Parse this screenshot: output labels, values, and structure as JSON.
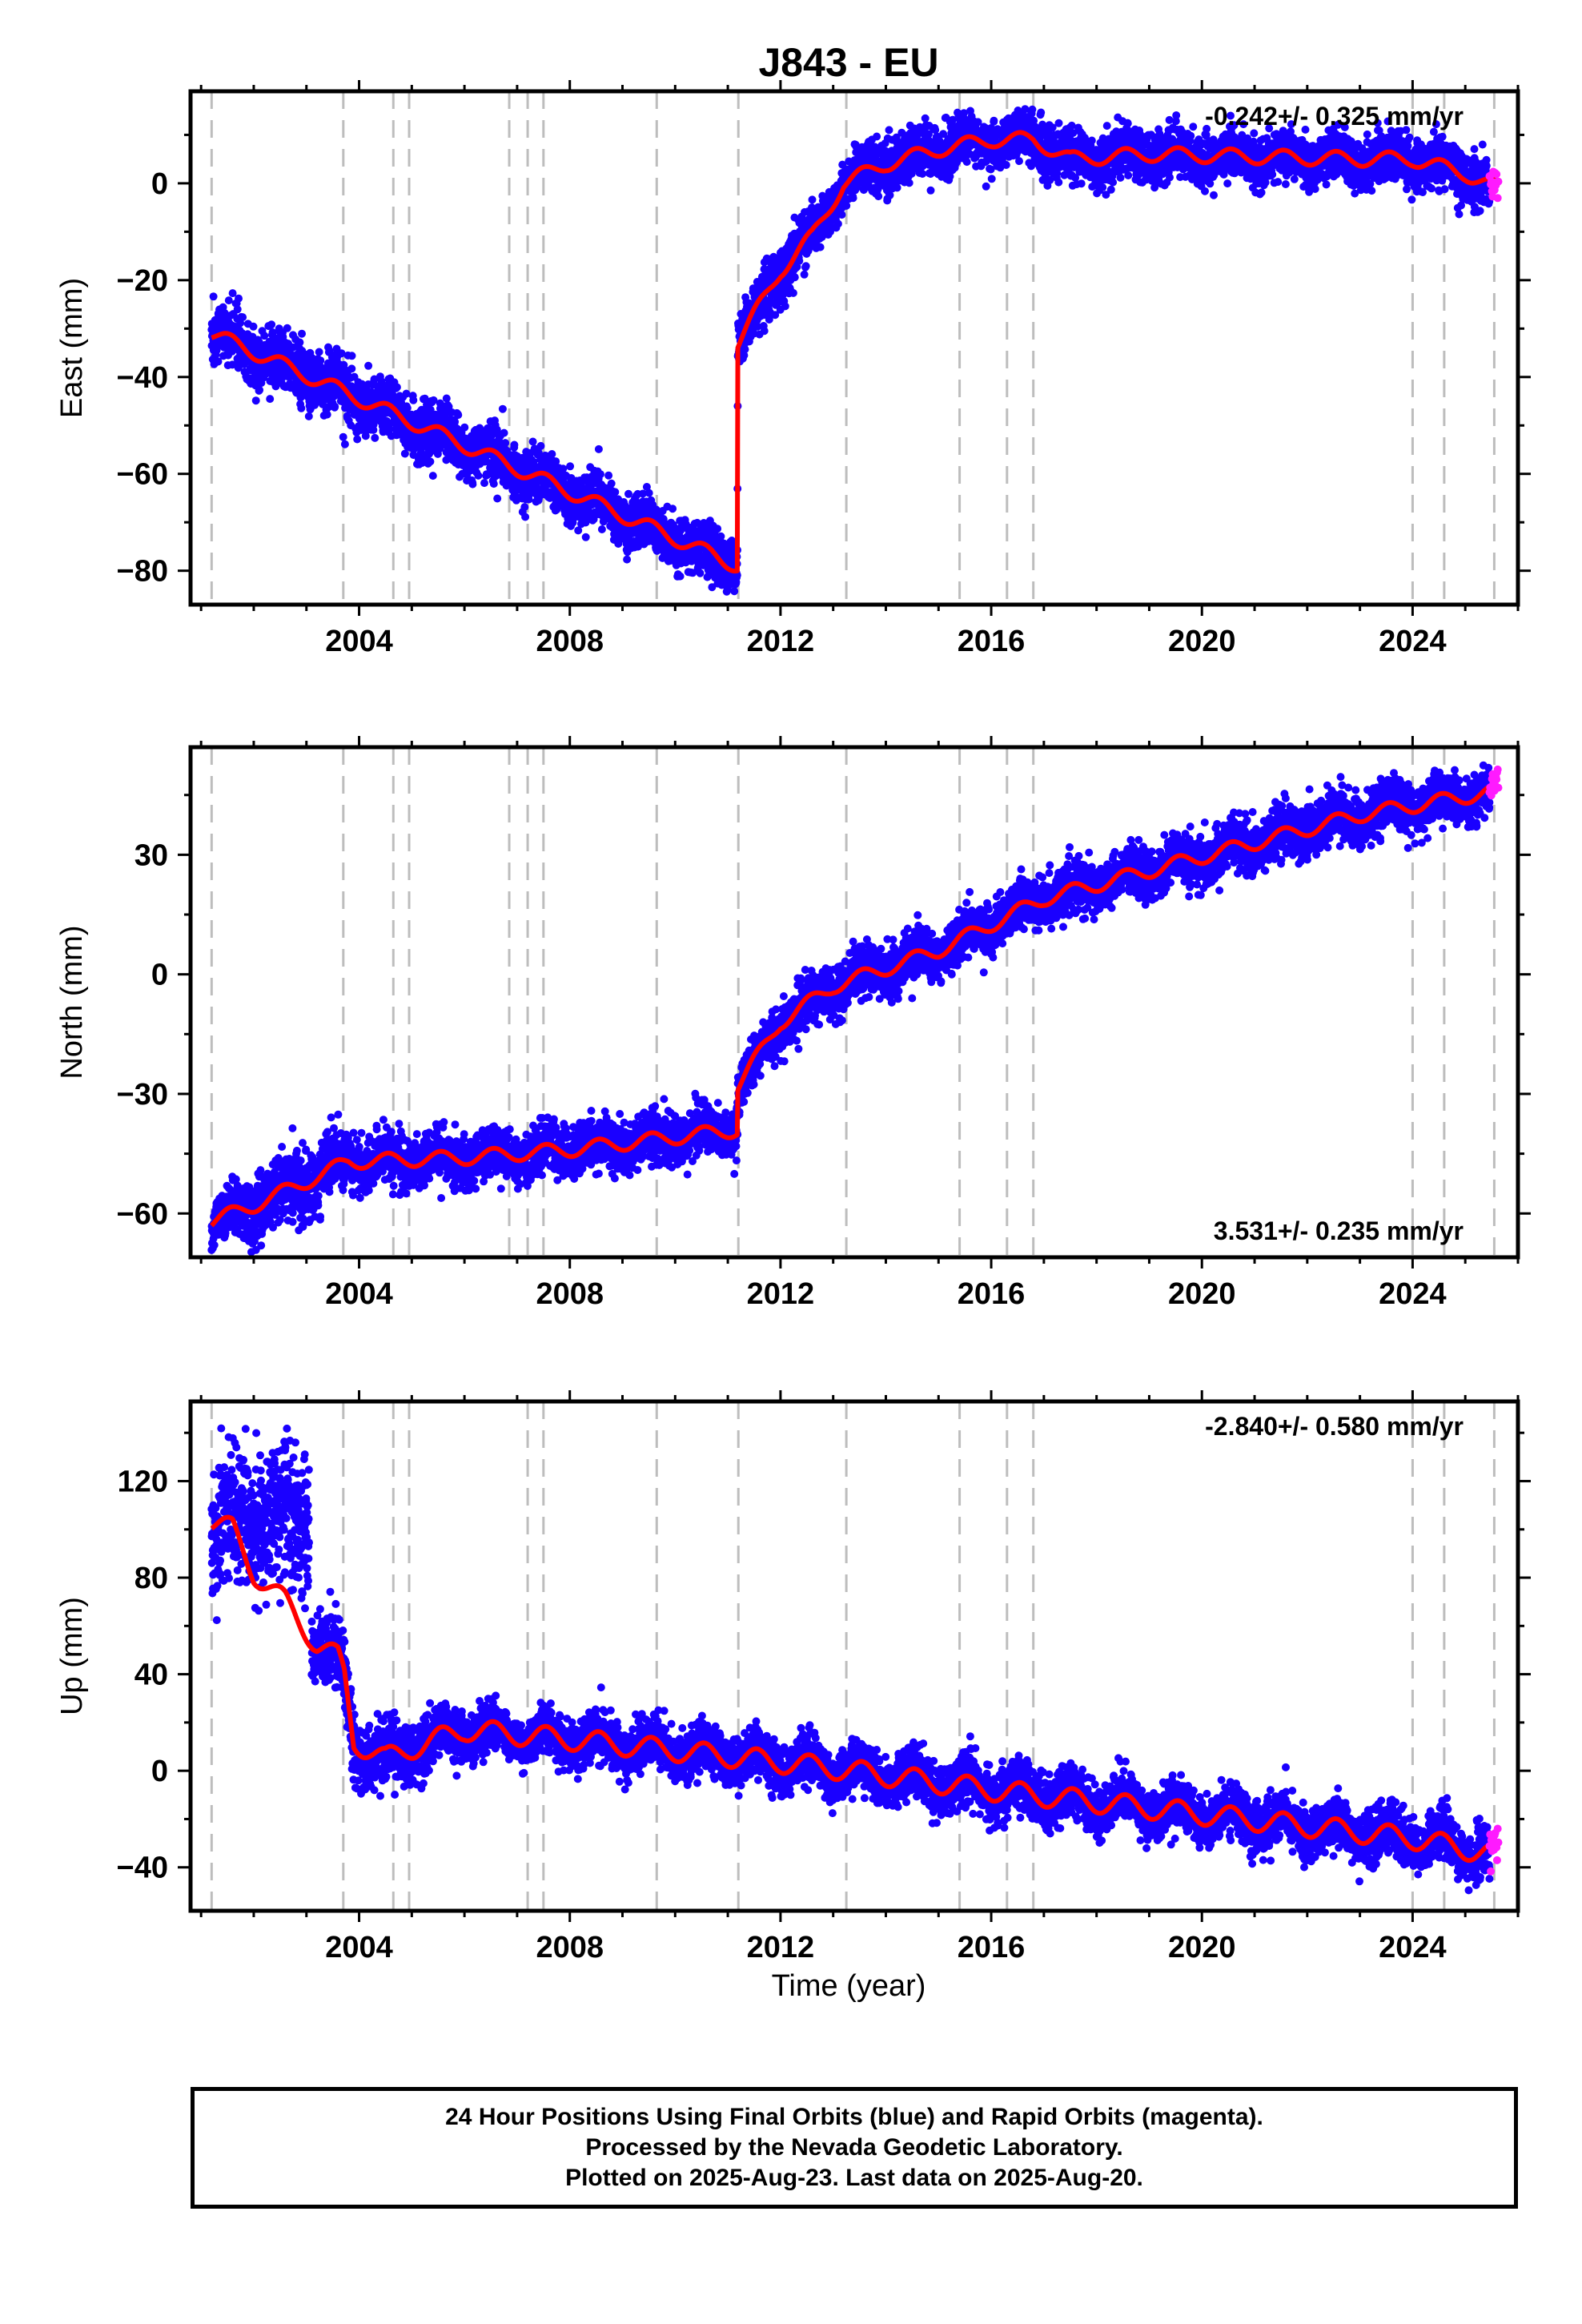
{
  "figure": {
    "title": "J843 - EU",
    "x_axis_label": "Time (year)",
    "colors": {
      "final_orbits": "#1a00ff",
      "rapid_orbits": "#ff1aff",
      "model": "#ff0000",
      "event_lines": "#bdbdbd",
      "frame": "#000000"
    }
  },
  "caption": {
    "line1": "24 Hour Positions Using Final Orbits (blue) and Rapid Orbits (magenta).",
    "line2": "Processed by the Nevada Geodetic Laboratory.",
    "line3": "Plotted on 2025-Aug-23. Last data on 2025-Aug-20."
  },
  "chart_data": [
    {
      "type": "scatter",
      "name": "east",
      "ylabel": "East (mm)",
      "velocity_label": "-0.242+/- 0.325 mm/yr",
      "velocity_label_position": "top-right",
      "xlim": [
        2000.8,
        2026.0
      ],
      "ylim": [
        -87,
        19
      ],
      "x_ticks": [
        2004,
        2008,
        2012,
        2016,
        2020,
        2024
      ],
      "x_tick_labels": [
        "2004",
        "2008",
        "2012",
        "2016",
        "2020",
        "2024"
      ],
      "y_ticks": [
        -80,
        -60,
        -40,
        -20,
        0
      ],
      "y_tick_labels": [
        "−80",
        "−60",
        "−40",
        "−20",
        "0"
      ],
      "event_lines_year": [
        2001.2,
        2003.7,
        2004.65,
        2004.95,
        2006.85,
        2007.2,
        2007.5,
        2009.65,
        2011.2,
        2013.25,
        2015.4,
        2016.3,
        2016.8,
        2024.0,
        2024.6,
        2025.55
      ],
      "model_seasonal_amplitude_mm": 1.5,
      "model_trend": {
        "x": [
          2001.2,
          2011.18,
          2011.19,
          2012.0,
          2012.6,
          2013.2,
          2014.0,
          2015.0,
          2016.0,
          2016.8,
          2017.5,
          2019.0,
          2021.0,
          2023.0,
          2024.0,
          2025.0,
          2025.6
        ],
        "y": [
          -31,
          -79,
          -33,
          -18,
          -11,
          0,
          4,
          7,
          9,
          9,
          5,
          6,
          5.5,
          5,
          5,
          2,
          -1
        ]
      },
      "scatter_spread_mm": {
        "x": [
          2001.2,
          2003.0,
          2011.18,
          2011.19,
          2013.0,
          2025.6
        ],
        "y": [
          3,
          3,
          2.5,
          3,
          2.5,
          2.5
        ]
      },
      "rapid_orbits_x": [
        2025.46,
        2025.63
      ]
    },
    {
      "type": "scatter",
      "name": "north",
      "ylabel": "North (mm)",
      "velocity_label": "3.531+/- 0.235 mm/yr",
      "velocity_label_position": "bottom-right",
      "xlim": [
        2000.8,
        2026.0
      ],
      "ylim": [
        -71,
        57
      ],
      "x_ticks": [
        2004,
        2008,
        2012,
        2016,
        2020,
        2024
      ],
      "x_tick_labels": [
        "2004",
        "2008",
        "2012",
        "2016",
        "2020",
        "2024"
      ],
      "y_ticks": [
        -60,
        -30,
        0,
        30
      ],
      "y_tick_labels": [
        "−60",
        "−30",
        "0",
        "30"
      ],
      "event_lines_year": [
        2001.2,
        2003.7,
        2004.65,
        2004.95,
        2006.85,
        2007.2,
        2007.5,
        2009.65,
        2011.2,
        2013.25,
        2015.4,
        2016.3,
        2016.8,
        2024.0,
        2024.6,
        2025.55
      ],
      "model_seasonal_amplitude_mm": 1.8,
      "model_trend": {
        "x": [
          2001.2,
          2002.0,
          2003.0,
          2003.8,
          2006.0,
          2008.0,
          2011.18,
          2011.19,
          2012.0,
          2013.0,
          2015.0,
          2017.0,
          2019.0,
          2021.0,
          2023.0,
          2025.6
        ],
        "y": [
          -62,
          -58,
          -52,
          -47,
          -46,
          -44,
          -39,
          -28,
          -12,
          -3,
          6,
          19,
          26,
          33,
          40,
          46
        ]
      },
      "scatter_spread_mm": {
        "x": [
          2001.2,
          2002.0,
          2003.0,
          2003.7,
          2006.0,
          2025.6
        ],
        "y": [
          3,
          4,
          5,
          3,
          3,
          3
        ]
      },
      "rapid_orbits_x": [
        2025.46,
        2025.63
      ]
    },
    {
      "type": "scatter",
      "name": "up",
      "ylabel": "Up (mm)",
      "xlabel": "Time (year)",
      "velocity_label": "-2.840+/- 0.580 mm/yr",
      "velocity_label_position": "top-right",
      "xlim": [
        2000.8,
        2026.0
      ],
      "ylim": [
        -58,
        153
      ],
      "x_ticks": [
        2004,
        2008,
        2012,
        2016,
        2020,
        2024
      ],
      "x_tick_labels": [
        "2004",
        "2008",
        "2012",
        "2016",
        "2020",
        "2024"
      ],
      "y_ticks": [
        -40,
        0,
        40,
        80,
        120
      ],
      "y_tick_labels": [
        "−40",
        "0",
        "40",
        "80",
        "120"
      ],
      "event_lines_year": [
        2001.2,
        2003.7,
        2004.65,
        2004.95,
        2007.2,
        2007.5,
        2009.65,
        2011.2,
        2013.25,
        2015.4,
        2016.3,
        2016.8,
        2024.0,
        2024.6,
        2025.55
      ],
      "model_seasonal_amplitude_mm": 4.5,
      "model_trend": {
        "x": [
          2001.2,
          2001.6,
          2002.0,
          2002.6,
          2003.2,
          2003.6,
          2003.72,
          2003.9,
          2004.5,
          2004.95,
          2006.0,
          2008.0,
          2011.0,
          2013.0,
          2016.0,
          2020.0,
          2024.0,
          2025.6
        ],
        "y": [
          103,
          100,
          82,
          70,
          52,
          47,
          40,
          12,
          5,
          9,
          17,
          13,
          6,
          1,
          -8,
          -18,
          -28,
          -35
        ]
      },
      "scatter_x_ranges": [
        [
          2001.2,
          2003.05
        ],
        [
          2003.1,
          2025.6
        ]
      ],
      "scatter_spread_mm": {
        "x": [
          2001.2,
          2003.05,
          2003.1,
          2004.0,
          2006.0,
          2025.6
        ],
        "y": [
          14,
          14,
          7,
          7,
          5,
          5
        ]
      },
      "scatter_offset_mm": {
        "x": [
          2001.2,
          2001.6,
          2002.0,
          2002.6,
          2003.0,
          2003.05
        ],
        "y": [
          -8,
          5,
          23,
          33,
          50,
          55
        ]
      },
      "rapid_orbits_x": [
        2025.46,
        2025.63
      ]
    }
  ]
}
